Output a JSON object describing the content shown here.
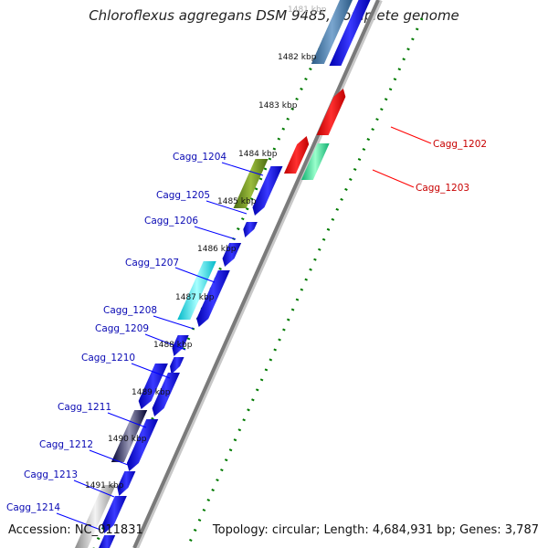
{
  "title": "Chloroflexus aggregans DSM 9485, complete genome",
  "accession_text": "Accession: NC_011831",
  "topology_text": "Topology: circular; Length: 4,684,931 bp; Genes: 3,787",
  "colors": {
    "forward_gene": "#0000ff",
    "reverse_gene": "#ff0000",
    "axis": "#808080",
    "tick": "#007a00",
    "forward_label": "#0a0ab4",
    "reverse_label": "#c80000"
  },
  "scale_labels": [
    "1481 kbp",
    "1482 kbp",
    "1483 kbp",
    "1484 kbp",
    "1485 kbp",
    "1486 kbp",
    "1487 kbp",
    "1488 kbp",
    "1489 kbp",
    "1490 kbp",
    "1491 kbp"
  ],
  "forward_labels": [
    "Cagg_1204",
    "Cagg_1205",
    "Cagg_1206",
    "Cagg_1207",
    "Cagg_1208",
    "Cagg_1209",
    "Cagg_1210",
    "Cagg_1211",
    "Cagg_1212",
    "Cagg_1213",
    "Cagg_1214"
  ],
  "reverse_labels": [
    "Cagg_1202",
    "Cagg_1203"
  ]
}
